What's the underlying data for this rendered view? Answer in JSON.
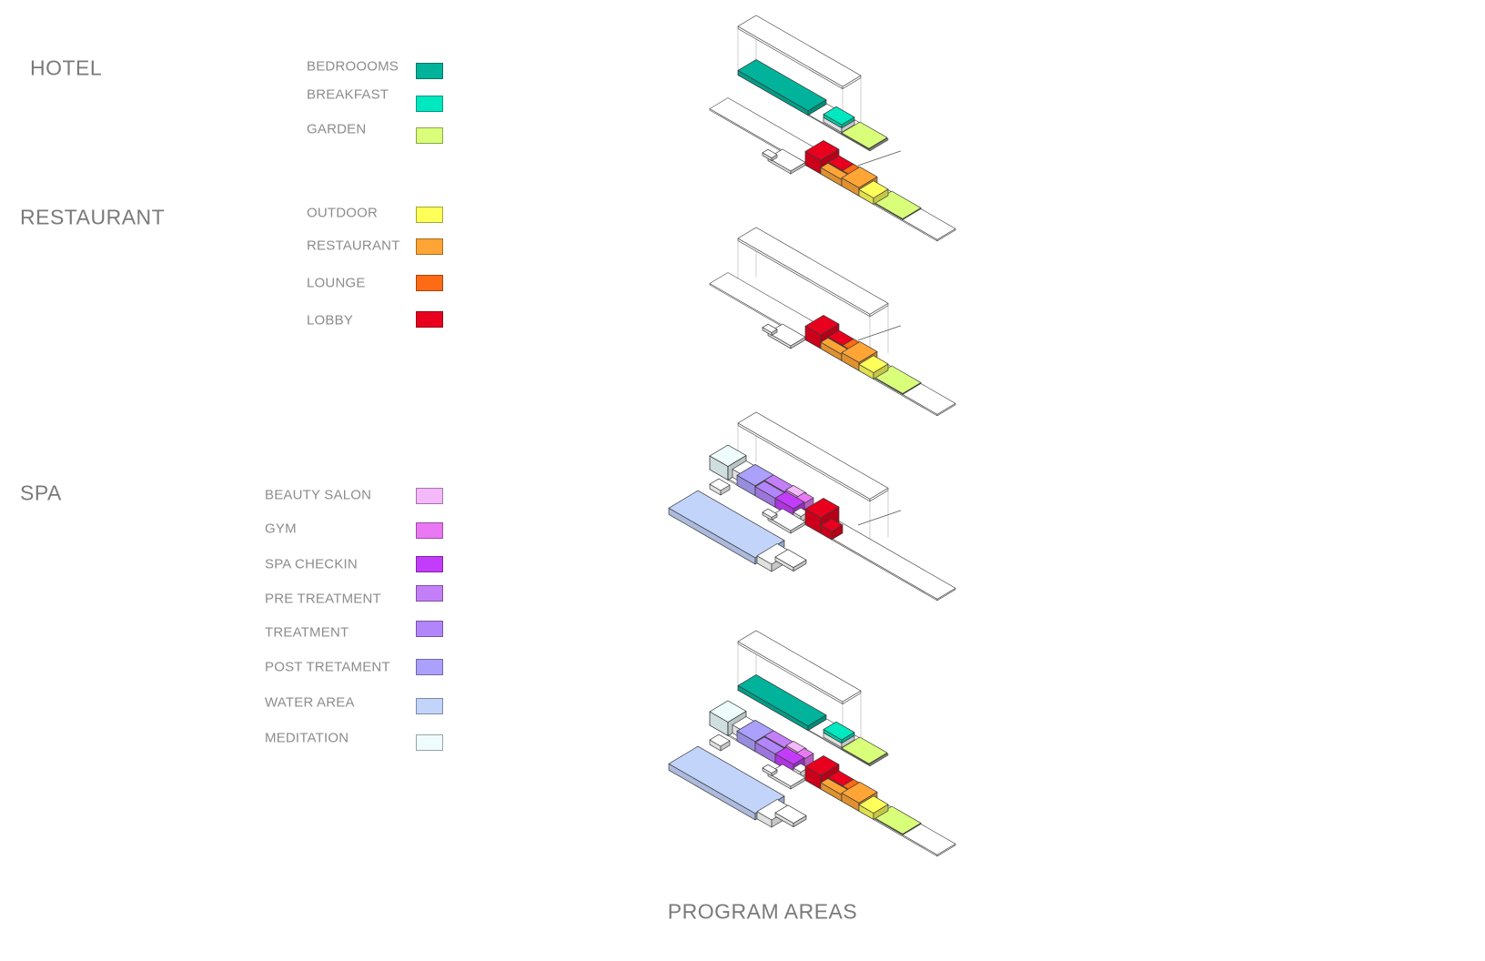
{
  "titles": {
    "hotel": "HOTEL",
    "restaurant": "RESTAURANT",
    "spa": "SPA"
  },
  "footer": "PROGRAM AREAS",
  "legend": {
    "hotel": [
      {
        "key": "bedrooms",
        "label": "BEDROOOMS",
        "color": "#00b39a"
      },
      {
        "key": "breakfast",
        "label": "BREAKFAST",
        "color": "#00e8c0"
      },
      {
        "key": "garden",
        "label": "GARDEN",
        "color": "#d9ff7a"
      }
    ],
    "restaurant": [
      {
        "key": "outdoor",
        "label": "OUTDOOR",
        "color": "#ffff5a"
      },
      {
        "key": "restaurant",
        "label": "RESTAURANT",
        "color": "#ffa535"
      },
      {
        "key": "lounge",
        "label": "LOUNGE",
        "color": "#ff6a14"
      },
      {
        "key": "lobby",
        "label": "LOBBY",
        "color": "#e8001e"
      }
    ],
    "spa": [
      {
        "key": "beauty",
        "label": "BEAUTY SALON",
        "color": "#f5b8fb"
      },
      {
        "key": "gym",
        "label": "GYM",
        "color": "#ea78f5"
      },
      {
        "key": "checkin",
        "label": "SPA CHECKIN",
        "color": "#c43cfb"
      },
      {
        "key": "pre",
        "label": "PRE TREATMENT",
        "color": "#c47ff8"
      },
      {
        "key": "treatment",
        "label": "TREATMENT",
        "color": "#b286fa"
      },
      {
        "key": "post",
        "label": "POST TRETAMENT",
        "color": "#aba0fb"
      },
      {
        "key": "water",
        "label": "WATER AREA",
        "color": "#c3d4fb"
      },
      {
        "key": "meditation",
        "label": "MEDITATION",
        "color": "#eefcfd"
      }
    ]
  }
}
